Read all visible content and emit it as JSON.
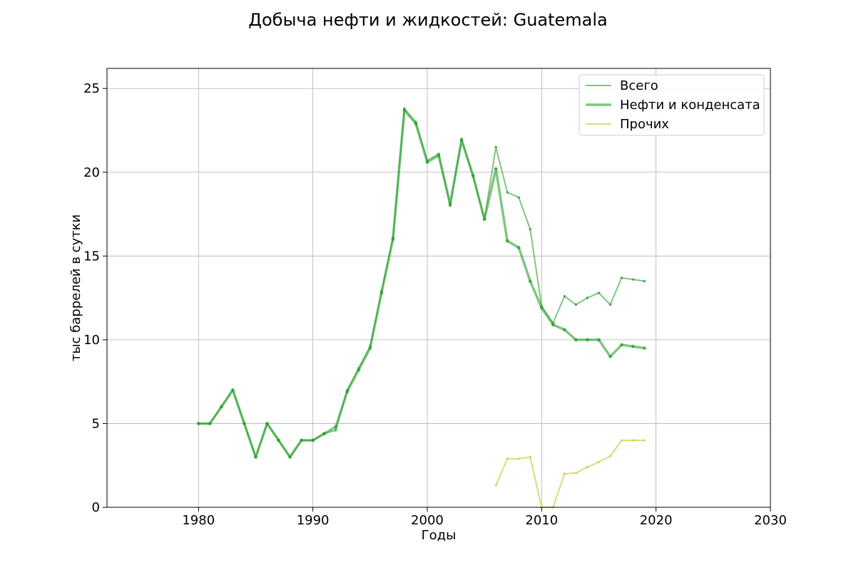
{
  "chart_data": {
    "type": "line",
    "title": "Добыча нефти и жидкостей: Guatemala",
    "xlabel": "Годы",
    "ylabel": "тыс баррелей в сутки",
    "xlim": [
      1972,
      2030
    ],
    "ylim": [
      0,
      26.2
    ],
    "xticks": [
      1980,
      1990,
      2000,
      2010,
      2020,
      2030
    ],
    "yticks": [
      0,
      5,
      10,
      15,
      20,
      25
    ],
    "grid": true,
    "legend_position": "top-right",
    "series": [
      {
        "name": "Всего",
        "color": "#2ca02c",
        "x": [
          1980,
          1981,
          1982,
          1983,
          1984,
          1985,
          1986,
          1987,
          1988,
          1989,
          1990,
          1991,
          1992,
          1993,
          1994,
          1995,
          1996,
          1997,
          1998,
          1999,
          2000,
          2001,
          2002,
          2003,
          2004,
          2005,
          2006,
          2007,
          2008,
          2009,
          2010,
          2011,
          2012,
          2013,
          2014,
          2015,
          2016,
          2017,
          2018,
          2019
        ],
        "y": [
          5.0,
          5.0,
          6.0,
          7.0,
          5.0,
          3.0,
          5.0,
          4.0,
          3.0,
          4.0,
          4.0,
          4.4,
          4.6,
          7.0,
          8.3,
          9.6,
          12.9,
          16.1,
          23.8,
          23.0,
          20.7,
          21.1,
          18.0,
          22.0,
          19.8,
          17.2,
          21.5,
          18.8,
          18.5,
          16.6,
          12.0,
          11.0,
          12.6,
          12.1,
          12.5,
          12.8,
          12.1,
          13.7,
          13.6,
          13.5
        ]
      },
      {
        "name": "Нефти и конденсата",
        "color": "#2ca02c",
        "x": [
          1980,
          1981,
          1982,
          1983,
          1984,
          1985,
          1986,
          1987,
          1988,
          1989,
          1990,
          1991,
          1992,
          1993,
          1994,
          1995,
          1996,
          1997,
          1998,
          1999,
          2000,
          2001,
          2002,
          2003,
          2004,
          2005,
          2006,
          2007,
          2008,
          2009,
          2010,
          2011,
          2012,
          2013,
          2014,
          2015,
          2016,
          2017,
          2018,
          2019
        ],
        "y": [
          5.0,
          5.0,
          6.0,
          7.0,
          5.0,
          3.0,
          5.0,
          4.0,
          3.0,
          4.0,
          4.0,
          4.4,
          4.8,
          6.9,
          8.2,
          9.5,
          12.8,
          16.0,
          23.7,
          22.9,
          20.6,
          21.0,
          18.1,
          21.9,
          19.8,
          17.2,
          20.2,
          15.9,
          15.5,
          13.5,
          11.9,
          10.9,
          10.6,
          10.0,
          10.0,
          10.0,
          9.0,
          9.7,
          9.6,
          9.5
        ]
      },
      {
        "name": "Прочих",
        "color": "#cccc44",
        "x": [
          2006,
          2007,
          2008,
          2009,
          2010,
          2011,
          2012,
          2013,
          2014,
          2015,
          2016,
          2017,
          2018,
          2019
        ],
        "y": [
          1.3,
          2.9,
          2.9,
          3.0,
          0.0,
          0.0,
          2.0,
          2.05,
          2.4,
          2.7,
          3.05,
          4.0,
          4.0,
          4.0
        ]
      }
    ]
  }
}
